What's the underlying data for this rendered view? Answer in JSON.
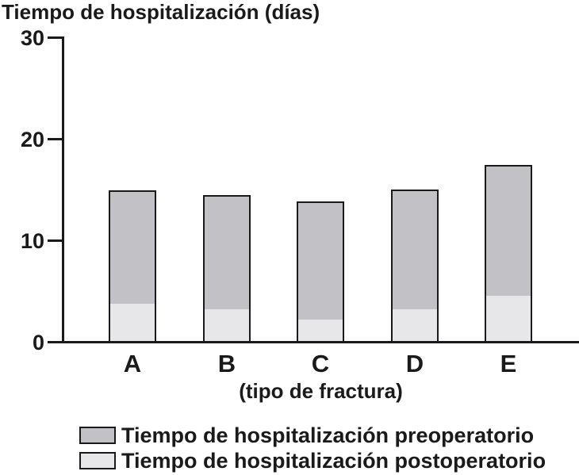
{
  "title": "Tiempo de hospitalización (días)",
  "chart_data": {
    "type": "bar",
    "stacked": true,
    "title": "Tiempo de hospitalización (días)",
    "xlabel": "(tipo de fractura)",
    "ylabel": "Tiempo de hospitalización (días)",
    "categories": [
      "A",
      "B",
      "C",
      "D",
      "E"
    ],
    "series": [
      {
        "name": "Tiempo de hospitalización preoperatorio",
        "stack_position": "top",
        "color": "#c2c2c6",
        "values": [
          11.2,
          11.2,
          11.6,
          11.8,
          12.9
        ]
      },
      {
        "name": "Tiempo de hospitalización postoperatorio",
        "stack_position": "bottom",
        "color": "#e7e7e9",
        "values": [
          3.8,
          3.3,
          2.3,
          3.3,
          4.6
        ]
      }
    ],
    "totals": [
      15.0,
      14.5,
      13.9,
      15.1,
      17.5
    ],
    "yticks": [
      0,
      10,
      20,
      30
    ],
    "ylim": [
      0,
      30
    ],
    "grid": false,
    "legend_position": "bottom",
    "axis_color": "#1a1a1a"
  }
}
